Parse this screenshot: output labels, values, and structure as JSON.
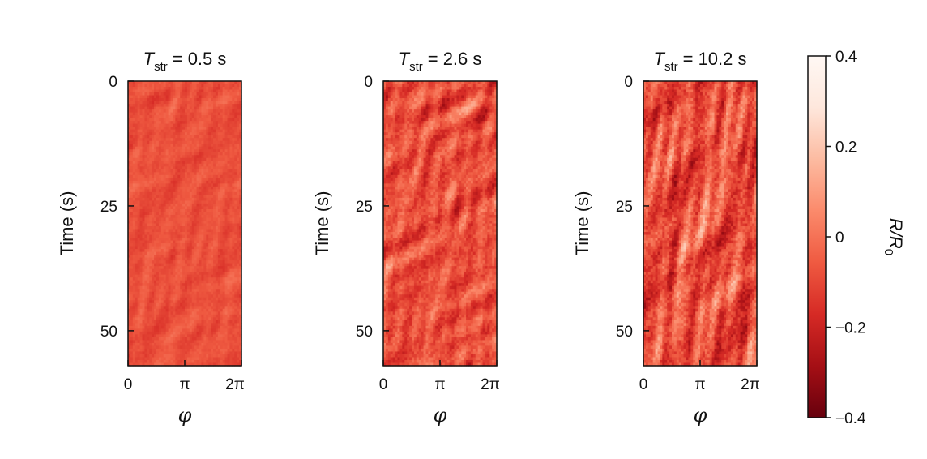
{
  "chart_data": {
    "type": "heatmap",
    "panels": [
      {
        "title_symbol": "T",
        "title_subscript": "str",
        "title_value": "= 0.5 s",
        "ylabel": "Time (s)",
        "xlabel": "φ",
        "show_ylabel": true,
        "yticks": [
          "0",
          "25",
          "50"
        ],
        "xticks": [
          "0",
          "π",
          "2π"
        ],
        "ylim": [
          0,
          57
        ],
        "xlim": [
          0,
          6.283
        ],
        "mean_value": -0.08,
        "fluctuation": 0.07,
        "streak_strength": 0.2
      },
      {
        "title_symbol": "T",
        "title_subscript": "str",
        "title_value": "= 2.6 s",
        "ylabel": "Time (s)",
        "xlabel": "φ",
        "show_ylabel": true,
        "yticks": [
          "0",
          "25",
          "50"
        ],
        "xticks": [
          "0",
          "π",
          "2π"
        ],
        "ylim": [
          0,
          57
        ],
        "xlim": [
          0,
          6.283
        ],
        "mean_value": -0.08,
        "fluctuation": 0.17,
        "streak_strength": 0.5
      },
      {
        "title_symbol": "T",
        "title_subscript": "str",
        "title_value": "= 10.2 s",
        "ylabel": "Time (s)",
        "xlabel": "φ",
        "show_ylabel": true,
        "yticks": [
          "0",
          "25",
          "50"
        ],
        "xticks": [
          "0",
          "π",
          "2π"
        ],
        "ylim": [
          0,
          57
        ],
        "xlim": [
          0,
          6.283
        ],
        "mean_value": -0.08,
        "fluctuation": 0.22,
        "streak_strength": 0.9
      }
    ],
    "colorbar": {
      "label_symbol": "R",
      "label_denominator": "R",
      "label_subscript": "0",
      "ticks": [
        "0.4",
        "0.2",
        "0",
        "−0.2",
        "−0.4"
      ],
      "tick_values": [
        0.4,
        0.2,
        0,
        -0.2,
        -0.4
      ],
      "range": [
        -0.4,
        0.4
      ],
      "colors": [
        "#67000d",
        "#a50f15",
        "#d62a25",
        "#ef5a41",
        "#fb8a6b",
        "#fcbba1",
        "#fee7dc",
        "#fff8f4"
      ]
    }
  }
}
